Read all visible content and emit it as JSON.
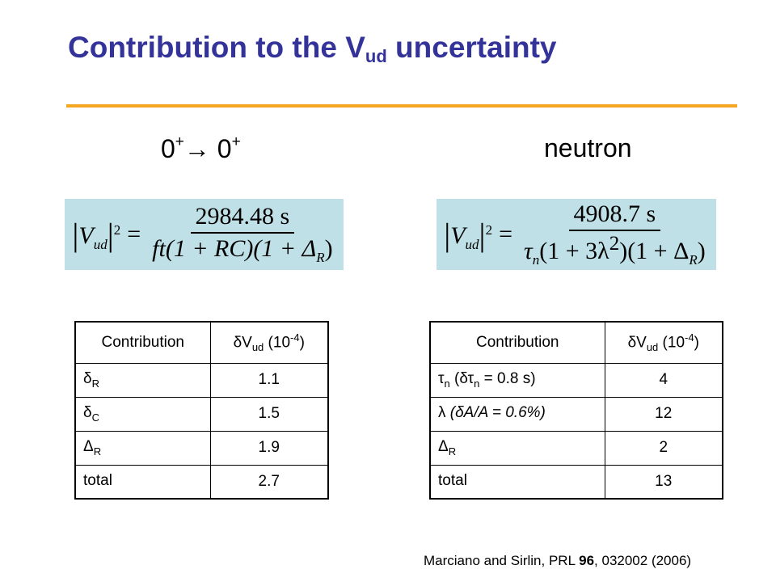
{
  "title": {
    "main": "Contribution to the V",
    "sub": "ud",
    "end": " uncertainty"
  },
  "headings": {
    "left": {
      "a": "0",
      "a_sup": "+",
      "arrow": "→",
      "b": " 0",
      "b_sup": "+"
    },
    "right": "neutron"
  },
  "formula_left": {
    "lhs_V": "V",
    "lhs_sub": "ud",
    "lhs_exp": "2",
    "equals": "=",
    "numerator": "2984.48 s",
    "denominator": "ft(1 + RC)(1 + Δ",
    "den_sub": "R",
    "den_end": ")"
  },
  "formula_right": {
    "lhs_V": "V",
    "lhs_sub": "ud",
    "lhs_exp": "2",
    "equals": "=",
    "numerator": "4908.7 s",
    "den_tau": "τ",
    "den_tau_sub": "n",
    "den_mid": "(1 + 3λ",
    "den_exp": "2",
    "den_mid2": ")(1 + Δ",
    "den_sub": "R",
    "den_end": ")"
  },
  "table_left": {
    "header": {
      "col1": "Contribution",
      "col2_pre": "δV",
      "col2_sub": "ud",
      "col2_mid": " (10",
      "col2_sup": "-4",
      "col2_end": ")"
    },
    "rows": [
      {
        "sym": "δ",
        "sub": "R",
        "text": "",
        "value": "1.1"
      },
      {
        "sym": "δ",
        "sub": "C",
        "text": "",
        "value": "1.5"
      },
      {
        "sym": "Δ",
        "sub": "R",
        "text": "",
        "value": "1.9"
      },
      {
        "sym": "",
        "sub": "",
        "text": "total",
        "value": "2.7"
      }
    ]
  },
  "table_right": {
    "header": {
      "col1": "Contribution",
      "col2_pre": "δV",
      "col2_sub": "ud",
      "col2_mid": " (10",
      "col2_sup": "-4",
      "col2_end": ")"
    },
    "rows": [
      {
        "sym": "τ",
        "sub": "n",
        "text": " (δτ",
        "sub2": "n",
        "text2": " = 0.8 s)",
        "value": "4"
      },
      {
        "sym": "λ",
        "sub": "",
        "text": " (δA/A = 0.6%)",
        "sub2": "",
        "text2": "",
        "value": "12"
      },
      {
        "sym": "Δ",
        "sub": "R",
        "text": "",
        "sub2": "",
        "text2": "",
        "value": "2"
      },
      {
        "sym": "",
        "sub": "",
        "text": "total",
        "sub2": "",
        "text2": "",
        "value": "13"
      }
    ]
  },
  "citation": {
    "pre": "Marciano and Sirlin, PRL ",
    "volume": "96",
    "post": ", 032002 (2006)"
  }
}
